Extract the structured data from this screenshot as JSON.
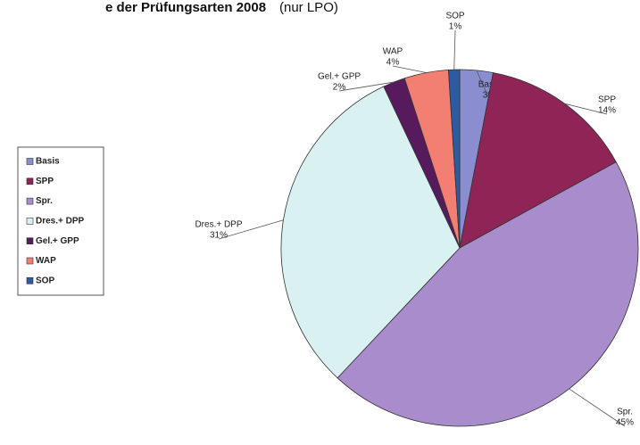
{
  "chart_data": {
    "type": "pie",
    "title": "e der Prüfungsarten 2008",
    "subtitle": "(nur LPO)",
    "categories": [
      "Basis",
      "SPP",
      "Spr.",
      "Dres.+ DPP",
      "Gel.+ GPP",
      "WAP",
      "SOP"
    ],
    "values": [
      3,
      14,
      45,
      31,
      2,
      4,
      1
    ],
    "value_labels": [
      "3%",
      "14%",
      "45%",
      "31%",
      "2%",
      "4%",
      "1%"
    ],
    "colors": [
      "#8a8ed0",
      "#8e2556",
      "#a98ccb",
      "#d9f1f1",
      "#571a5c",
      "#f27f72",
      "#2c5ba3"
    ]
  }
}
